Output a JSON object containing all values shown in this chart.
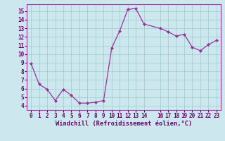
{
  "x": [
    0,
    1,
    2,
    3,
    4,
    5,
    6,
    7,
    8,
    9,
    10,
    11,
    12,
    13,
    14,
    16,
    17,
    18,
    19,
    20,
    21,
    22,
    23
  ],
  "y": [
    8.9,
    6.5,
    5.9,
    4.6,
    5.9,
    5.2,
    4.3,
    4.3,
    4.4,
    4.6,
    10.7,
    12.7,
    15.2,
    15.3,
    13.5,
    13.0,
    12.6,
    12.1,
    12.3,
    10.8,
    10.4,
    11.1,
    11.6
  ],
  "line_color": "#993399",
  "marker_color": "#993399",
  "bg_color": "#cce8ee",
  "grid_color": "#99cccc",
  "axis_label_color": "#660066",
  "tick_color": "#660066",
  "spine_color": "#993399",
  "xlabel": "Windchill (Refroidissement éolien,°C)",
  "xlim": [
    -0.5,
    23.5
  ],
  "ylim": [
    3.5,
    15.8
  ],
  "yticks": [
    4,
    5,
    6,
    7,
    8,
    9,
    10,
    11,
    12,
    13,
    14,
    15
  ],
  "xticks": [
    0,
    1,
    2,
    3,
    4,
    5,
    6,
    7,
    8,
    9,
    10,
    11,
    12,
    13,
    14,
    16,
    17,
    18,
    19,
    20,
    21,
    22,
    23
  ],
  "tick_fontsize": 5.5,
  "xlabel_fontsize": 6.2
}
